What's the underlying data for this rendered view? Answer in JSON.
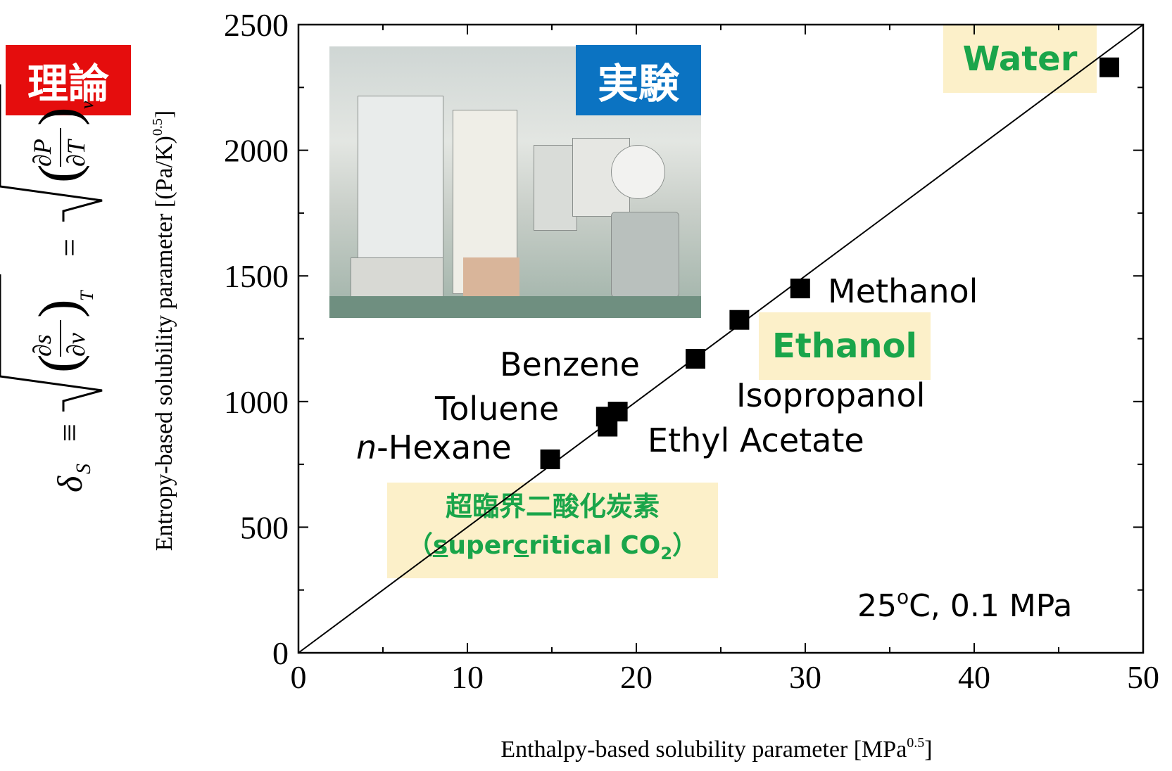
{
  "chart_data": {
    "type": "scatter",
    "title": "",
    "xlabel": "Enthalpy-based solubility parameter [MPa",
    "xlabel_sup": "0.5",
    "xlabel_end": "]",
    "ylabel": "Entropy-based solubility parameter [(Pa/K)",
    "ylabel_sup": "0.5",
    "ylabel_end": "]",
    "xlim": [
      0,
      50
    ],
    "ylim": [
      0,
      2500
    ],
    "xticks": [
      "0",
      "10",
      "20",
      "30",
      "40",
      "50"
    ],
    "yticks": [
      "0",
      "500",
      "1000",
      "1500",
      "2000",
      "2500"
    ],
    "grid": false,
    "reference_line": {
      "x": [
        0,
        50
      ],
      "y": [
        0,
        2500
      ]
    },
    "points": [
      {
        "x": 14.9,
        "y": 770,
        "label": "n-Hexane",
        "label_italic_prefix": "n"
      },
      {
        "x": 18.3,
        "y": 900,
        "label": "Toluene"
      },
      {
        "x": 18.2,
        "y": 940,
        "label": ""
      },
      {
        "x": 18.9,
        "y": 960,
        "label": "Benzene"
      },
      {
        "x": 23.5,
        "y": 1170,
        "label": "Ethyl Acetate"
      },
      {
        "x": 26.1,
        "y": 1325,
        "label": "Isopropanol"
      },
      {
        "x": 29.7,
        "y": 1450,
        "label": "Methanol"
      },
      {
        "x": 48.0,
        "y": 2330,
        "label": "Water"
      }
    ],
    "annotation": "25°C, 0.1 MPa",
    "annotation_parts": [
      "25",
      "o",
      "C, 0.1 MPa"
    ]
  },
  "labels": {
    "theory": "理論",
    "experiment": "実験",
    "water": "Water",
    "ethanol": "Ethanol",
    "methanol": "Methanol",
    "isopropanol": "Isopropanol",
    "benzene": "Benzene",
    "toluene": "Toluene",
    "hexane_prefix": "n",
    "hexane_rest": "-Hexane",
    "ethyl_acetate": "Ethyl Acetate",
    "co2_jp": "超臨界二酸化炭素",
    "co2_en_open": "（",
    "co2_en_s": "s",
    "co2_en_mid": "uper",
    "co2_en_c": "c",
    "co2_en_rest": "ritical CO",
    "co2_en_sub": "2",
    "co2_en_close": "）"
  },
  "formula": {
    "delta": "δ",
    "sub_s": "S",
    "equiv": "≡",
    "eq": "=",
    "ds": "∂s",
    "dv": "∂v",
    "dP": "∂P",
    "dT": "∂T",
    "sub_T": "T",
    "sub_v": "v"
  },
  "colors": {
    "accent_green": "#1aa54a",
    "highlight_bg": "#fcf0c9",
    "theory_red": "#e50d0d",
    "experiment_blue": "#0b73c2"
  }
}
